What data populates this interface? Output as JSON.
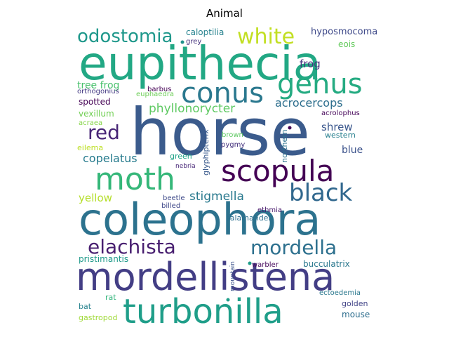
{
  "chart_data": {
    "type": "wordcloud",
    "title": "Animal",
    "background": "#ffffff",
    "words": [
      {
        "text": "horse",
        "color": "#3b5b8c"
      },
      {
        "text": "eupithecia",
        "color": "#22a884"
      },
      {
        "text": "coleophora",
        "color": "#2c728e"
      },
      {
        "text": "mordellistena",
        "color": "#433e85"
      },
      {
        "text": "turbonilla",
        "color": "#1f9e89"
      },
      {
        "text": "scopula",
        "color": "#440154"
      },
      {
        "text": "conus",
        "color": "#2a788e"
      },
      {
        "text": "genus",
        "color": "#25ab82"
      },
      {
        "text": "moth",
        "color": "#35b779"
      },
      {
        "text": "black",
        "color": "#31688e"
      },
      {
        "text": "white",
        "color": "#c2df23"
      },
      {
        "text": "odostomia",
        "color": "#1f988b"
      },
      {
        "text": "red",
        "color": "#482677"
      },
      {
        "text": "elachista",
        "color": "#481f70"
      },
      {
        "text": "mordella",
        "color": "#2d708e"
      },
      {
        "text": "stigmella",
        "color": "#29798e"
      },
      {
        "text": "phyllonorycter",
        "color": "#5ec962"
      },
      {
        "text": "copelatus",
        "color": "#287c8e"
      },
      {
        "text": "acrocercops",
        "color": "#2e6f8e"
      },
      {
        "text": "frog",
        "color": "#46337e"
      },
      {
        "text": "tree frog",
        "color": "#4ac16d"
      },
      {
        "text": "shrew",
        "color": "#39568c"
      },
      {
        "text": "blue",
        "color": "#3b528b"
      },
      {
        "text": "yellow",
        "color": "#b5de2b"
      },
      {
        "text": "caloptilia",
        "color": "#26828e"
      },
      {
        "text": "hyposmocoma",
        "color": "#3e4989"
      },
      {
        "text": "eois",
        "color": "#65cb5e"
      },
      {
        "text": "spotted",
        "color": "#440154"
      },
      {
        "text": "vexillum",
        "color": "#73d056"
      },
      {
        "text": "pristimantis",
        "color": "#1f9a8a"
      },
      {
        "text": "bucculatrix",
        "color": "#2a788e"
      },
      {
        "text": "grey",
        "color": "#46337e"
      },
      {
        "text": "barbus",
        "color": "#440154"
      },
      {
        "text": "orthogonius",
        "color": "#443a83"
      },
      {
        "text": "euphaedra",
        "color": "#6ece58"
      },
      {
        "text": "acraea",
        "color": "#86d549"
      },
      {
        "text": "eilema",
        "color": "#bddf26"
      },
      {
        "text": "acrolophus",
        "color": "#450559"
      },
      {
        "text": "western",
        "color": "#277f8e"
      },
      {
        "text": "northern",
        "color": "#2c718e"
      },
      {
        "text": "glyphipterix",
        "color": "#38598c"
      },
      {
        "text": "brown",
        "color": "#5ec962"
      },
      {
        "text": "pygmy",
        "color": "#46337e"
      },
      {
        "text": "green",
        "color": "#1fa287"
      },
      {
        "text": "nebria",
        "color": "#482878"
      },
      {
        "text": "salamander",
        "color": "#2d708e"
      },
      {
        "text": "beetle",
        "color": "#3e4a89"
      },
      {
        "text": "billed",
        "color": "#3f4889"
      },
      {
        "text": "ethmia",
        "color": "#481a6c"
      },
      {
        "text": "mountain",
        "color": "#3b528b"
      },
      {
        "text": "warbler",
        "color": "#46085c"
      },
      {
        "text": "rat",
        "color": "#31b57b"
      },
      {
        "text": "bat",
        "color": "#26828e"
      },
      {
        "text": "ectoedemia",
        "color": "#2a788e"
      },
      {
        "text": "golden",
        "color": "#414487"
      },
      {
        "text": "mouse",
        "color": "#2e6e8e"
      },
      {
        "text": "gastropod",
        "color": "#a0da39"
      }
    ]
  }
}
